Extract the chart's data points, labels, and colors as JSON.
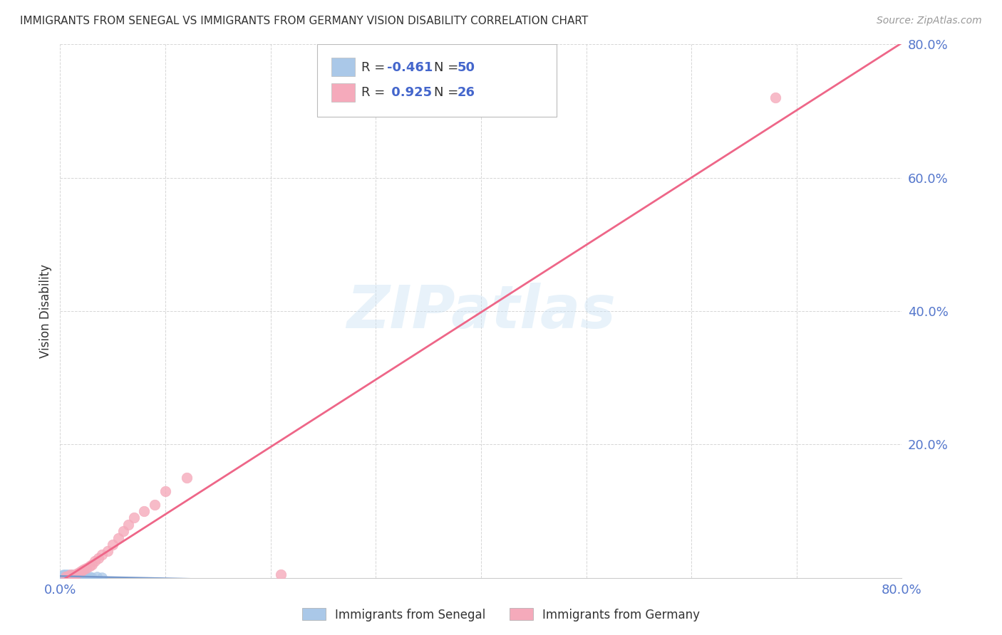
{
  "title": "IMMIGRANTS FROM SENEGAL VS IMMIGRANTS FROM GERMANY VISION DISABILITY CORRELATION CHART",
  "source": "Source: ZipAtlas.com",
  "ylabel": "Vision Disability",
  "xlim": [
    0,
    0.8
  ],
  "ylim": [
    0,
    0.8
  ],
  "background_color": "#ffffff",
  "watermark_text": "ZIPatlas",
  "senegal_R": -0.461,
  "senegal_N": 50,
  "germany_R": 0.925,
  "germany_N": 26,
  "senegal_color": "#aac8e8",
  "germany_color": "#f5aabb",
  "senegal_line_color": "#7799cc",
  "germany_line_color": "#ee6688",
  "axis_tick_color": "#5577cc",
  "grid_color": "#cccccc",
  "title_color": "#333333",
  "source_color": "#999999",
  "legend_text_color": "#333333",
  "legend_RN_color": "#4466cc",
  "legend_neg_color": "#4466cc",
  "germany_x": [
    0.005,
    0.008,
    0.01,
    0.012,
    0.015,
    0.018,
    0.02,
    0.022,
    0.025,
    0.028,
    0.03,
    0.033,
    0.036,
    0.04,
    0.045,
    0.05,
    0.055,
    0.06,
    0.065,
    0.07,
    0.08,
    0.09,
    0.1,
    0.12,
    0.21,
    0.68
  ],
  "germany_y": [
    0.002,
    0.003,
    0.005,
    0.004,
    0.006,
    0.008,
    0.01,
    0.012,
    0.015,
    0.018,
    0.02,
    0.025,
    0.03,
    0.035,
    0.04,
    0.05,
    0.06,
    0.07,
    0.08,
    0.09,
    0.1,
    0.11,
    0.13,
    0.15,
    0.005,
    0.72
  ],
  "senegal_x": [
    0.001,
    0.001,
    0.002,
    0.002,
    0.002,
    0.003,
    0.003,
    0.003,
    0.003,
    0.004,
    0.004,
    0.004,
    0.005,
    0.005,
    0.005,
    0.005,
    0.006,
    0.006,
    0.006,
    0.007,
    0.007,
    0.007,
    0.008,
    0.008,
    0.008,
    0.009,
    0.009,
    0.01,
    0.01,
    0.011,
    0.011,
    0.012,
    0.012,
    0.013,
    0.013,
    0.014,
    0.015,
    0.015,
    0.016,
    0.017,
    0.018,
    0.019,
    0.02,
    0.022,
    0.024,
    0.026,
    0.028,
    0.03,
    0.035,
    0.04
  ],
  "senegal_y": [
    0.001,
    0.003,
    0.001,
    0.002,
    0.004,
    0.001,
    0.002,
    0.003,
    0.005,
    0.001,
    0.002,
    0.004,
    0.001,
    0.002,
    0.003,
    0.005,
    0.001,
    0.002,
    0.004,
    0.001,
    0.003,
    0.005,
    0.001,
    0.002,
    0.004,
    0.001,
    0.003,
    0.001,
    0.002,
    0.003,
    0.005,
    0.001,
    0.002,
    0.001,
    0.003,
    0.002,
    0.001,
    0.003,
    0.002,
    0.001,
    0.002,
    0.003,
    0.001,
    0.002,
    0.003,
    0.001,
    0.002,
    0.001,
    0.002,
    0.001
  ]
}
